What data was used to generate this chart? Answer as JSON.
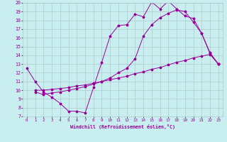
{
  "xlabel": "Windchill (Refroidissement éolien,°C)",
  "bg_color": "#c8eef0",
  "line_color": "#990099",
  "grid_color": "#b0c8cc",
  "xlim": [
    -0.5,
    23.5
  ],
  "ylim": [
    7,
    20
  ],
  "xticks": [
    0,
    1,
    2,
    3,
    4,
    5,
    6,
    7,
    8,
    9,
    10,
    11,
    12,
    13,
    14,
    15,
    16,
    17,
    18,
    19,
    20,
    21,
    22,
    23
  ],
  "yticks": [
    7,
    8,
    9,
    10,
    11,
    12,
    13,
    14,
    15,
    16,
    17,
    18,
    19,
    20
  ],
  "line1_x": [
    0,
    1,
    2,
    3,
    4,
    5,
    6,
    7,
    8,
    9,
    10,
    11,
    12,
    13,
    14,
    15,
    16,
    17,
    18,
    19,
    20,
    21,
    22,
    23
  ],
  "line1_y": [
    12.5,
    11.0,
    9.8,
    9.2,
    8.5,
    7.6,
    7.6,
    7.4,
    10.3,
    13.2,
    16.2,
    17.4,
    17.5,
    18.7,
    18.4,
    20.1,
    19.3,
    20.2,
    19.3,
    18.5,
    18.2,
    16.5,
    14.3,
    13.0
  ],
  "line2_x": [
    1,
    2,
    3,
    4,
    5,
    6,
    7,
    8,
    9,
    10,
    11,
    12,
    13,
    14,
    15,
    16,
    17,
    18,
    19,
    20,
    21,
    22,
    23
  ],
  "line2_y": [
    10.0,
    10.0,
    10.1,
    10.2,
    10.3,
    10.5,
    10.6,
    10.8,
    11.0,
    11.2,
    11.4,
    11.6,
    11.9,
    12.1,
    12.4,
    12.6,
    12.9,
    13.2,
    13.4,
    13.7,
    13.9,
    14.1,
    13.0
  ],
  "line3_x": [
    1,
    2,
    3,
    4,
    5,
    6,
    7,
    8,
    9,
    10,
    11,
    12,
    13,
    14,
    15,
    16,
    17,
    18,
    19,
    20,
    21,
    22,
    23
  ],
  "line3_y": [
    9.8,
    9.5,
    9.7,
    9.8,
    10.0,
    10.2,
    10.4,
    10.7,
    11.0,
    11.4,
    12.0,
    12.5,
    13.6,
    16.2,
    17.5,
    18.3,
    18.8,
    19.2,
    19.0,
    17.8,
    16.5,
    14.2,
    13.0
  ]
}
